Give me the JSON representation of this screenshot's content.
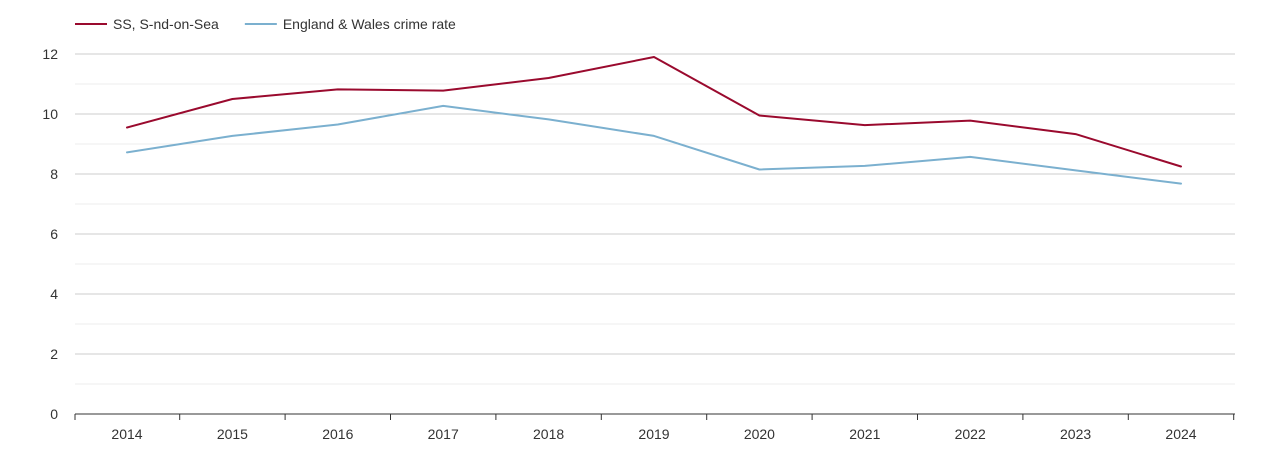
{
  "chart_data": {
    "type": "line",
    "title": "",
    "xlabel": "",
    "ylabel": "",
    "x": [
      "2014",
      "2015",
      "2016",
      "2017",
      "2018",
      "2019",
      "2020",
      "2021",
      "2022",
      "2023",
      "2024"
    ],
    "ylim": [
      0,
      12.8
    ],
    "yticks": [
      0,
      2,
      4,
      6,
      8,
      10,
      12
    ],
    "grid": true,
    "legend_position": "top-left",
    "series": [
      {
        "name": "SS, S-nd-on-Sea",
        "color": "#9a0a2e",
        "values": [
          9.55,
          10.5,
          10.82,
          10.78,
          11.2,
          11.9,
          9.95,
          9.63,
          9.78,
          9.33,
          8.25
        ]
      },
      {
        "name": "England & Wales crime rate",
        "color": "#7bb0cf",
        "values": [
          8.72,
          9.27,
          9.65,
          10.27,
          9.82,
          9.27,
          8.15,
          8.27,
          8.57,
          8.12,
          7.68
        ]
      }
    ]
  }
}
